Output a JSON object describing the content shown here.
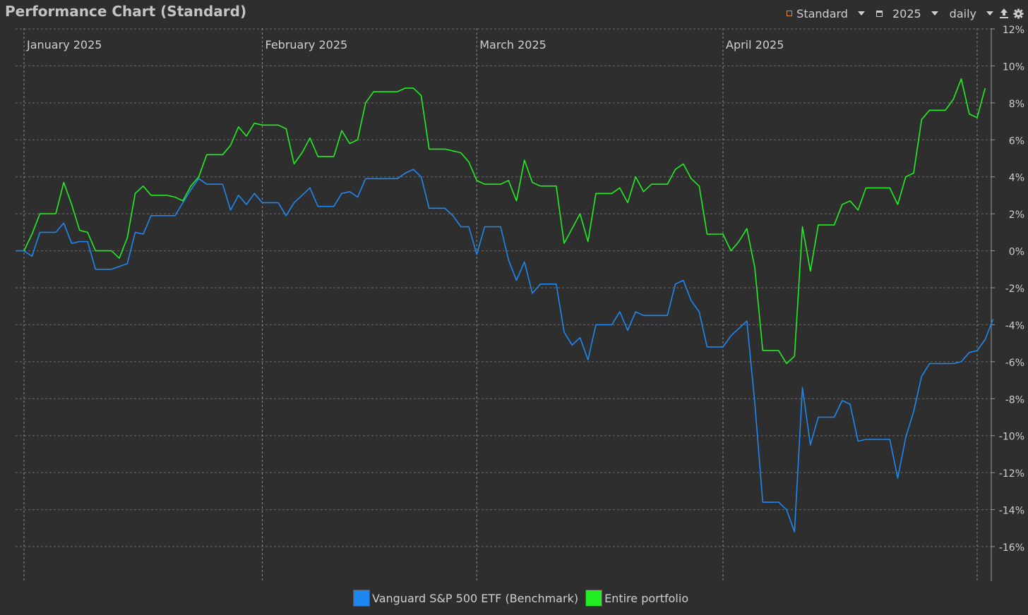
{
  "header": {
    "title": "Performance Chart (Standard)",
    "view_label": "Standard",
    "year_label": "2025",
    "interval_label": "daily",
    "upload_icon": "upload-icon",
    "settings_icon": "gear-icon"
  },
  "colors": {
    "background": "#2e2e2e",
    "grid": "#6a6a6a",
    "benchmark": "#1e88f0",
    "portfolio": "#22ee22",
    "accent": "#e08a2c"
  },
  "chart_data": {
    "type": "line",
    "title": "Performance Chart (Standard)",
    "x_month_labels": [
      "January 2025",
      "February 2025",
      "March 2025",
      "April 2025"
    ],
    "x_month_start_index": [
      0,
      30,
      57,
      88
    ],
    "ylim": [
      -16.5,
      12
    ],
    "yticks": [
      12,
      10,
      8,
      6,
      4,
      2,
      0,
      -2,
      -4,
      -6,
      -8,
      -10,
      -12,
      -14,
      -16
    ],
    "ytick_labels": [
      "12%",
      "10%",
      "8%",
      "6%",
      "4%",
      "2%",
      "0%",
      "-2%",
      "-4%",
      "-6%",
      "-8%",
      "-10%",
      "-12%",
      "-14%",
      "-16%"
    ],
    "grid": true,
    "legend_position": "bottom",
    "series": [
      {
        "name": "Vanguard S&P 500 ETF (Benchmark)",
        "color": "#1e88f0",
        "points": [
          [
            -1,
            0.0
          ],
          [
            0,
            0.0
          ],
          [
            1,
            -0.3
          ],
          [
            2,
            1.0
          ],
          [
            4,
            1.0
          ],
          [
            5,
            1.5
          ],
          [
            6,
            0.4
          ],
          [
            7,
            0.5
          ],
          [
            8,
            0.5
          ],
          [
            9,
            -1.0
          ],
          [
            11,
            -1.0
          ],
          [
            13,
            -0.7
          ],
          [
            14,
            1.0
          ],
          [
            15,
            0.9
          ],
          [
            16,
            1.9
          ],
          [
            19,
            1.9
          ],
          [
            20,
            2.6
          ],
          [
            21,
            3.3
          ],
          [
            22,
            3.9
          ],
          [
            23,
            3.6
          ],
          [
            25,
            3.6
          ],
          [
            26,
            2.2
          ],
          [
            27,
            3.0
          ],
          [
            28,
            2.5
          ],
          [
            29,
            3.1
          ],
          [
            30,
            2.6
          ],
          [
            32,
            2.6
          ],
          [
            33,
            1.9
          ],
          [
            34,
            2.6
          ],
          [
            35,
            3.0
          ],
          [
            36,
            3.4
          ],
          [
            37,
            2.4
          ],
          [
            39,
            2.4
          ],
          [
            40,
            3.1
          ],
          [
            41,
            3.2
          ],
          [
            42,
            2.9
          ],
          [
            43,
            3.9
          ],
          [
            47,
            3.9
          ],
          [
            48,
            4.2
          ],
          [
            49,
            4.4
          ],
          [
            50,
            4.0
          ],
          [
            51,
            2.3
          ],
          [
            53,
            2.3
          ],
          [
            54,
            1.9
          ],
          [
            55,
            1.3
          ],
          [
            56,
            1.3
          ],
          [
            57,
            -0.2
          ],
          [
            58,
            1.3
          ],
          [
            60,
            1.3
          ],
          [
            61,
            -0.5
          ],
          [
            62,
            -1.6
          ],
          [
            63,
            -0.6
          ],
          [
            64,
            -2.3
          ],
          [
            65,
            -1.8
          ],
          [
            67,
            -1.8
          ],
          [
            68,
            -4.4
          ],
          [
            69,
            -5.1
          ],
          [
            70,
            -4.7
          ],
          [
            71,
            -5.9
          ],
          [
            72,
            -4.0
          ],
          [
            74,
            -4.0
          ],
          [
            75,
            -3.3
          ],
          [
            76,
            -4.3
          ],
          [
            77,
            -3.3
          ],
          [
            78,
            -3.5
          ],
          [
            81,
            -3.5
          ],
          [
            82,
            -1.8
          ],
          [
            83,
            -1.6
          ],
          [
            84,
            -2.7
          ],
          [
            85,
            -3.3
          ],
          [
            86,
            -5.2
          ],
          [
            88,
            -5.2
          ],
          [
            89,
            -4.6
          ],
          [
            90,
            -4.2
          ],
          [
            91,
            -3.8
          ],
          [
            92,
            -8.2
          ],
          [
            93,
            -13.6
          ],
          [
            95,
            -13.6
          ],
          [
            96,
            -14.0
          ],
          [
            97,
            -15.2
          ],
          [
            98,
            -7.4
          ],
          [
            99,
            -10.5
          ],
          [
            100,
            -9.0
          ],
          [
            102,
            -9.0
          ],
          [
            103,
            -8.1
          ],
          [
            104,
            -8.3
          ],
          [
            105,
            -10.3
          ],
          [
            106,
            -10.2
          ],
          [
            109,
            -10.2
          ],
          [
            110,
            -12.3
          ],
          [
            111,
            -10.1
          ],
          [
            112,
            -8.7
          ],
          [
            113,
            -6.8
          ],
          [
            114,
            -6.1
          ],
          [
            117,
            -6.1
          ],
          [
            118,
            -6.0
          ],
          [
            119,
            -5.5
          ],
          [
            120,
            -5.4
          ],
          [
            121,
            -4.8
          ],
          [
            122,
            -3.7
          ]
        ]
      },
      {
        "name": "Entire portfolio",
        "color": "#22ee22",
        "points": [
          [
            0,
            0.0
          ],
          [
            1,
            0.9
          ],
          [
            2,
            2.0
          ],
          [
            4,
            2.0
          ],
          [
            5,
            3.7
          ],
          [
            6,
            2.5
          ],
          [
            7,
            1.1
          ],
          [
            8,
            1.0
          ],
          [
            9,
            0.0
          ],
          [
            11,
            0.0
          ],
          [
            12,
            -0.4
          ],
          [
            13,
            0.7
          ],
          [
            14,
            3.1
          ],
          [
            15,
            3.5
          ],
          [
            16,
            3.0
          ],
          [
            18,
            3.0
          ],
          [
            19,
            2.9
          ],
          [
            20,
            2.7
          ],
          [
            21,
            3.5
          ],
          [
            22,
            4.0
          ],
          [
            23,
            5.2
          ],
          [
            25,
            5.2
          ],
          [
            26,
            5.7
          ],
          [
            27,
            6.7
          ],
          [
            28,
            6.2
          ],
          [
            29,
            6.9
          ],
          [
            30,
            6.8
          ],
          [
            32,
            6.8
          ],
          [
            33,
            6.6
          ],
          [
            34,
            4.7
          ],
          [
            35,
            5.3
          ],
          [
            36,
            6.1
          ],
          [
            37,
            5.1
          ],
          [
            39,
            5.1
          ],
          [
            40,
            6.5
          ],
          [
            41,
            5.8
          ],
          [
            42,
            6.0
          ],
          [
            43,
            8.0
          ],
          [
            44,
            8.6
          ],
          [
            47,
            8.6
          ],
          [
            48,
            8.8
          ],
          [
            49,
            8.8
          ],
          [
            50,
            8.4
          ],
          [
            51,
            5.5
          ],
          [
            53,
            5.5
          ],
          [
            55,
            5.3
          ],
          [
            56,
            4.8
          ],
          [
            57,
            3.8
          ],
          [
            58,
            3.6
          ],
          [
            60,
            3.6
          ],
          [
            61,
            3.8
          ],
          [
            62,
            2.7
          ],
          [
            63,
            4.9
          ],
          [
            64,
            3.7
          ],
          [
            65,
            3.5
          ],
          [
            67,
            3.5
          ],
          [
            68,
            0.4
          ],
          [
            70,
            2.0
          ],
          [
            71,
            0.5
          ],
          [
            72,
            3.1
          ],
          [
            74,
            3.1
          ],
          [
            75,
            3.4
          ],
          [
            76,
            2.6
          ],
          [
            77,
            4.0
          ],
          [
            78,
            3.2
          ],
          [
            79,
            3.6
          ],
          [
            81,
            3.6
          ],
          [
            82,
            4.4
          ],
          [
            83,
            4.7
          ],
          [
            84,
            3.9
          ],
          [
            85,
            3.5
          ],
          [
            86,
            0.9
          ],
          [
            88,
            0.9
          ],
          [
            89,
            0.0
          ],
          [
            90,
            0.5
          ],
          [
            91,
            1.2
          ],
          [
            92,
            -0.9
          ],
          [
            93,
            -5.4
          ],
          [
            95,
            -5.4
          ],
          [
            96,
            -6.1
          ],
          [
            97,
            -5.7
          ],
          [
            98,
            1.3
          ],
          [
            99,
            -1.1
          ],
          [
            100,
            1.4
          ],
          [
            102,
            1.4
          ],
          [
            103,
            2.5
          ],
          [
            104,
            2.7
          ],
          [
            105,
            2.2
          ],
          [
            106,
            3.4
          ],
          [
            109,
            3.4
          ],
          [
            110,
            2.5
          ],
          [
            111,
            4.0
          ],
          [
            112,
            4.2
          ],
          [
            113,
            7.1
          ],
          [
            114,
            7.6
          ],
          [
            116,
            7.6
          ],
          [
            117,
            8.2
          ],
          [
            118,
            9.3
          ],
          [
            119,
            7.4
          ],
          [
            120,
            7.2
          ],
          [
            121,
            8.8
          ]
        ]
      }
    ]
  }
}
